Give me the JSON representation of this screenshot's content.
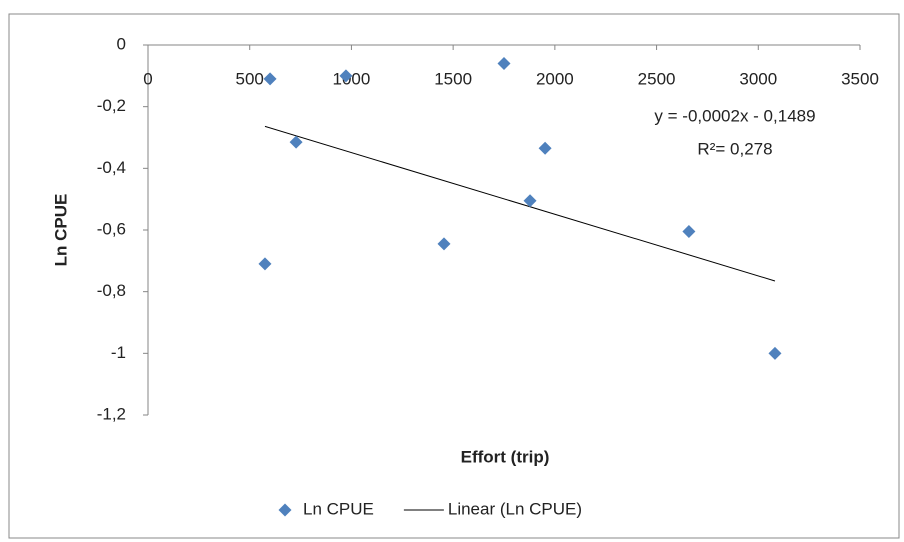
{
  "chart_data": {
    "type": "scatter",
    "x_label": "Effort (trip)",
    "y_label": "Ln CPUE",
    "x": [
      600,
      973,
      728,
      575,
      1455,
      1750,
      1878,
      1952,
      2659,
      3082
    ],
    "series": [
      {
        "name": "Ln CPUE",
        "color": "#4f81bd",
        "values": [
          -0.11,
          -0.1,
          -0.315,
          -0.71,
          -0.645,
          -0.06,
          -0.505,
          -0.335,
          -0.605,
          -1.0
        ]
      }
    ],
    "trendline": {
      "name": "Linear (Ln CPUE)",
      "color": "#000000",
      "slope": -0.0002,
      "intercept": -0.1489,
      "equation": "y = -0,0002x - 0,1489",
      "r2_label": "R²= 0,278"
    },
    "xlim": [
      0,
      3500
    ],
    "xticks": [
      0,
      500,
      1000,
      1500,
      2000,
      2500,
      3000,
      3500
    ],
    "ylim": [
      -1.2,
      0
    ],
    "yticks": [
      0,
      {
        "value": -0.2,
        "label": "-0,2"
      },
      {
        "value": -0.4,
        "label": "-0,4"
      },
      {
        "value": -0.6,
        "label": "-0,6"
      },
      {
        "value": -0.8,
        "label": "-0,8"
      },
      -1,
      {
        "value": -1.2,
        "label": "-1,2"
      }
    ],
    "grid": false,
    "legend": "bottom"
  }
}
